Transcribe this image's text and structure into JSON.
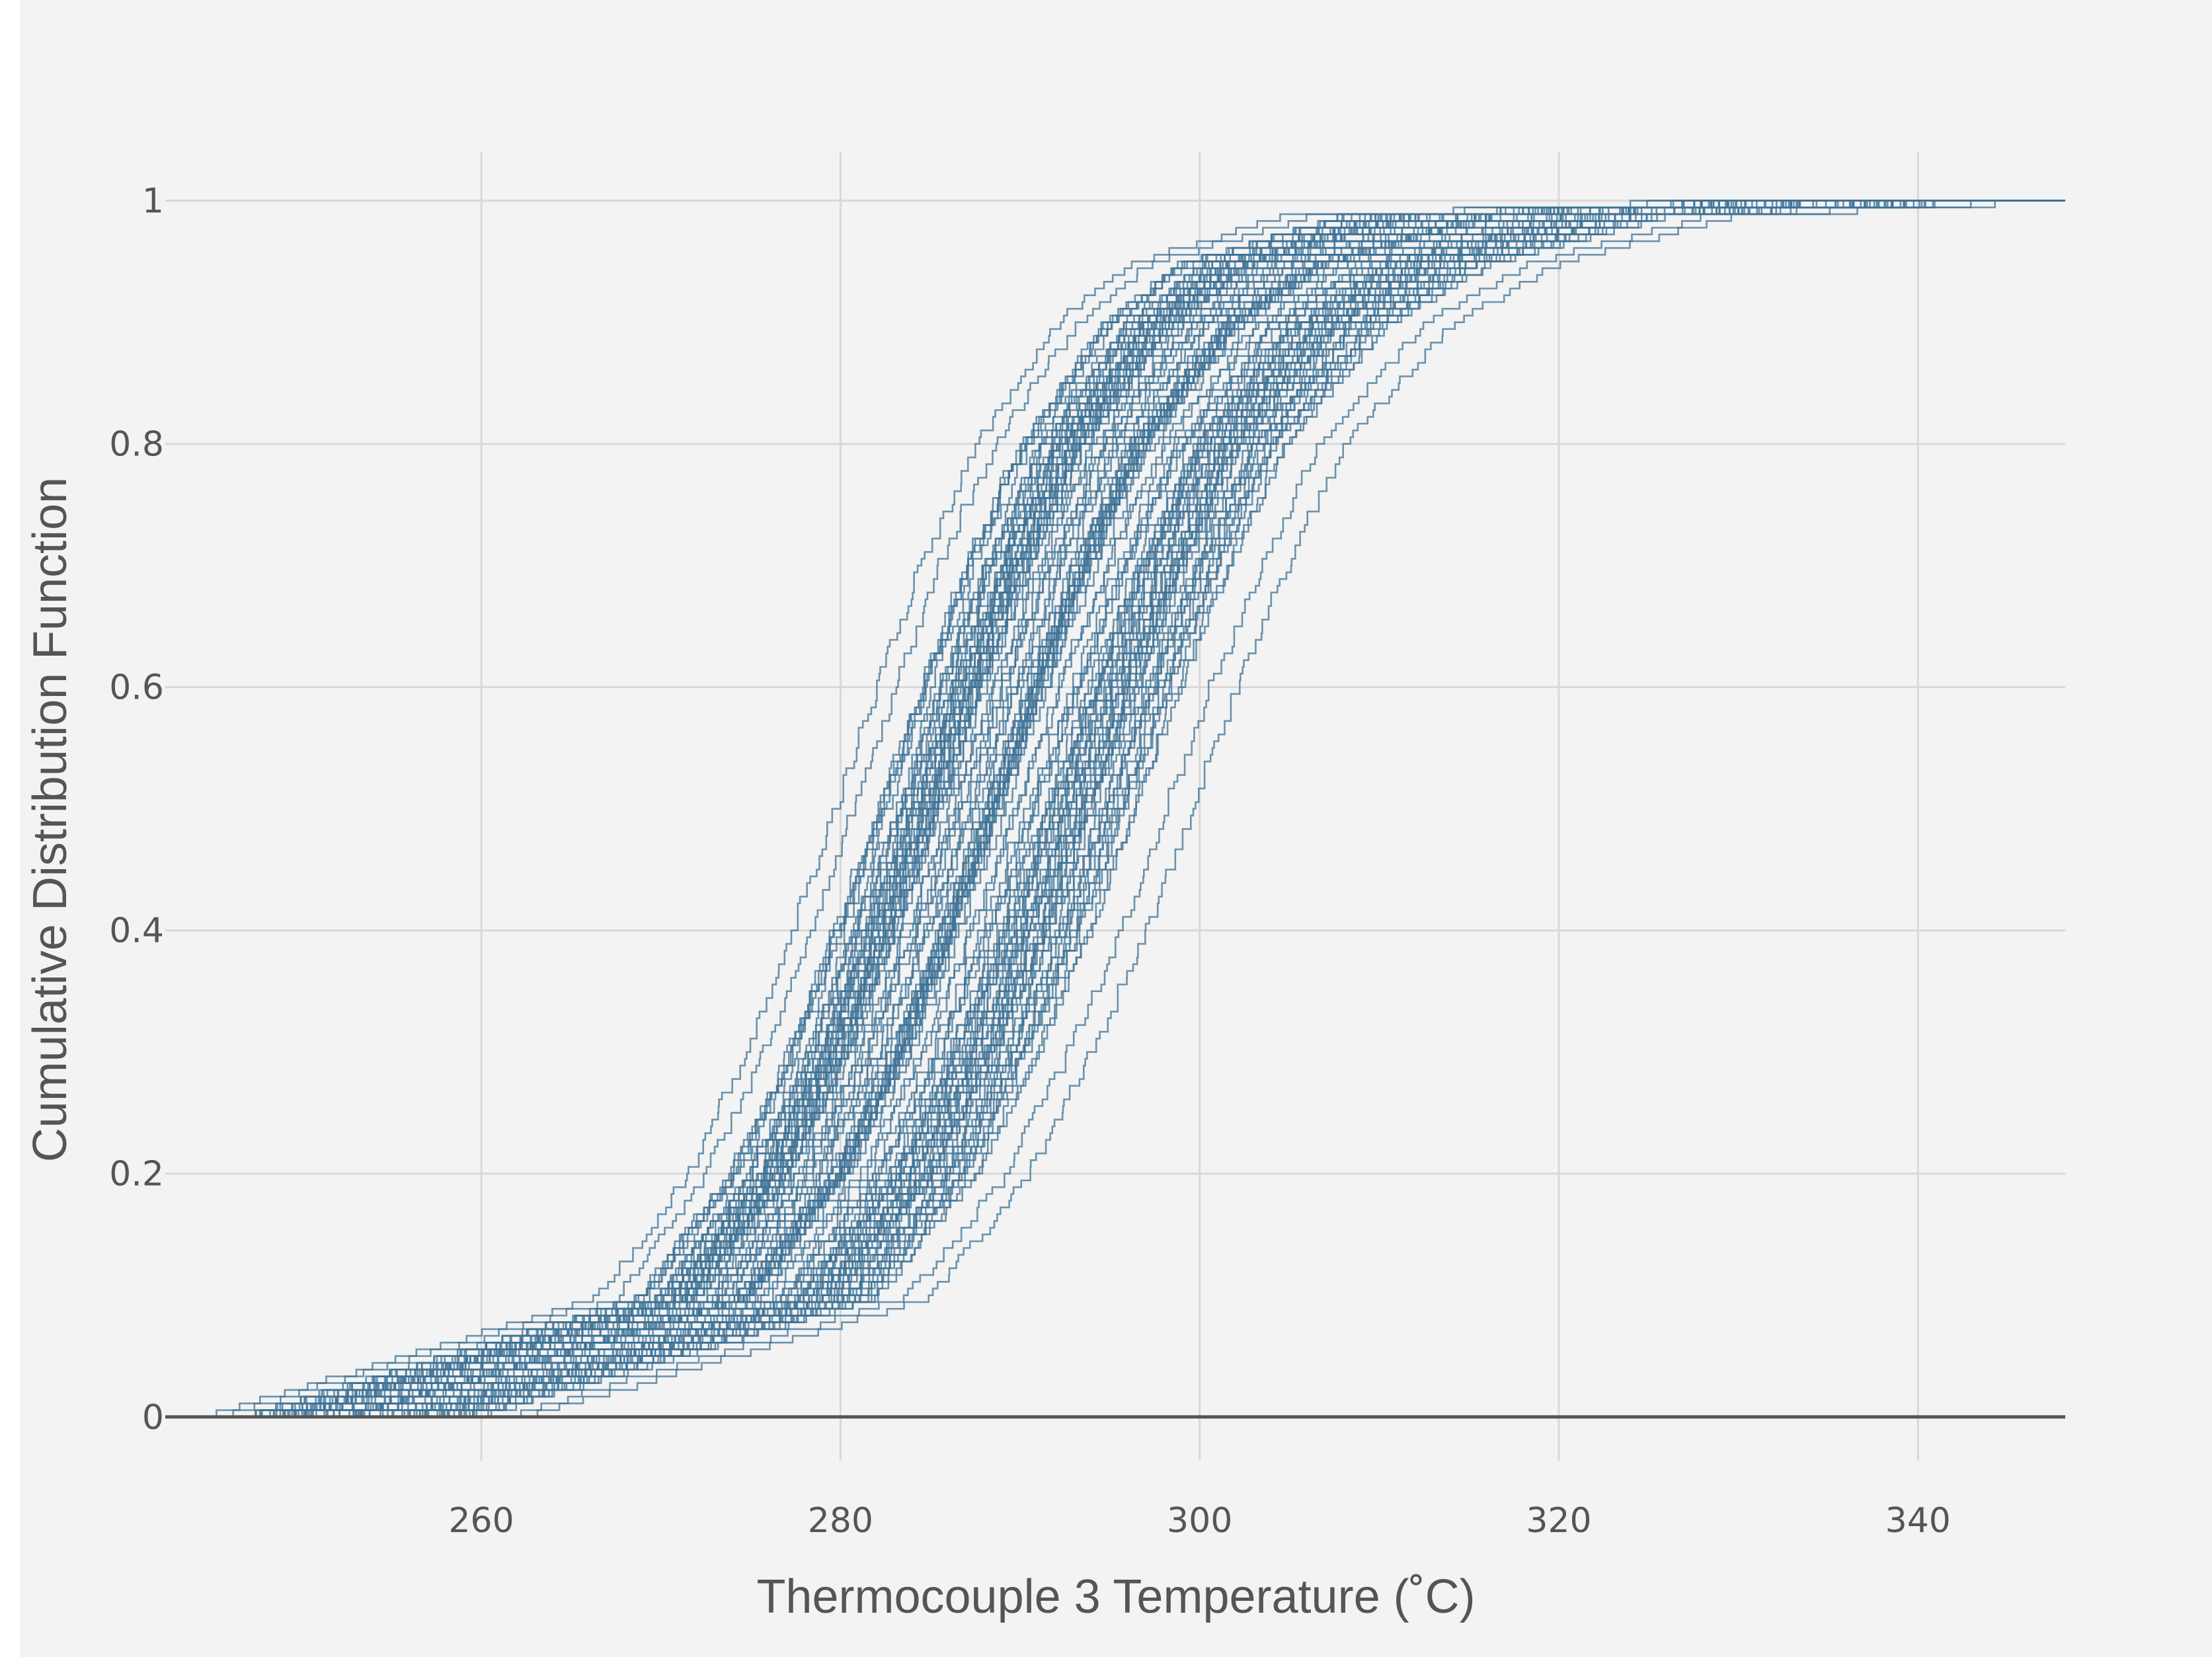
{
  "chart_data": {
    "type": "line",
    "title": "",
    "xlabel": "Thermocouple 3 Temperature (˚C)",
    "ylabel": "Cumulative Distribution Function",
    "xlim": [
      242.4,
      348.2
    ],
    "ylim": [
      -0.036,
      1.04
    ],
    "x_ticks": [
      260,
      280,
      300,
      320,
      340
    ],
    "x_tick_labels": [
      "260",
      "280",
      "300",
      "320",
      "340"
    ],
    "y_ticks": [
      0,
      0.2,
      0.4,
      0.6,
      0.8,
      1
    ],
    "y_tick_labels": [
      "0",
      "0.2",
      "0.4",
      "0.6",
      "0.8",
      "1"
    ],
    "grid": true,
    "legend": "none",
    "series_color": "#3e7195",
    "series_count": 100,
    "series_style": "empirical CDF step curves",
    "envelope": {
      "cdf_levels": [
        0.0,
        0.1,
        0.2,
        0.3,
        0.4,
        0.5,
        0.6,
        0.7,
        0.8,
        0.9,
        0.95,
        0.99,
        1.0
      ],
      "x_leftmost": [
        244,
        266.5,
        271.5,
        274.7,
        277.2,
        279.6,
        282.0,
        284.4,
        287.5,
        292.0,
        296.0,
        305.0,
        325.0
      ],
      "x_rightmost": [
        262,
        285.0,
        290.5,
        294.0,
        297.0,
        299.5,
        302.0,
        304.8,
        308.0,
        314.0,
        320.0,
        330.0,
        345.0
      ]
    }
  }
}
